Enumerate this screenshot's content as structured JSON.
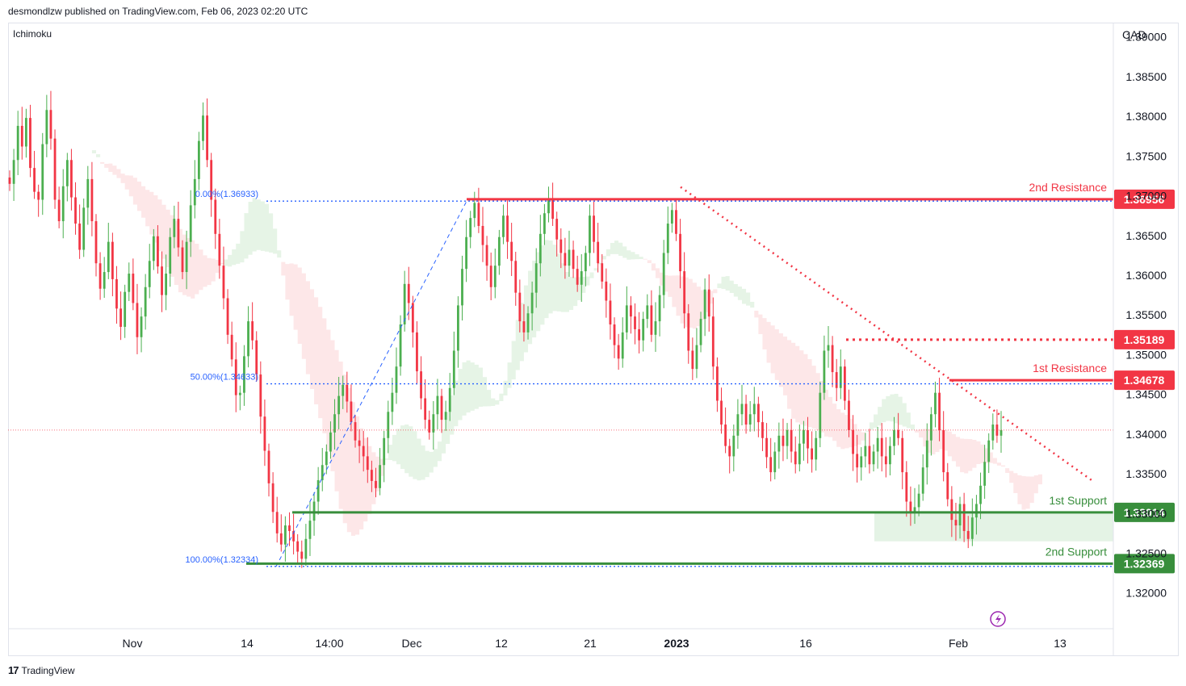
{
  "header": {
    "publisher": "desmondlzw published on TradingView.com, Feb 06, 2023 02:20 UTC"
  },
  "footer": {
    "brand": "TradingView"
  },
  "chart_data": {
    "type": "candlestick",
    "indicator": "Ichimoku",
    "currency": "CAD",
    "y_ticks": [
      "1.39000",
      "1.38500",
      "1.38000",
      "1.37500",
      "1.37000",
      "1.36500",
      "1.36000",
      "1.35500",
      "1.35000",
      "1.34500",
      "1.34000",
      "1.33500",
      "1.33000",
      "1.32500",
      "1.32000"
    ],
    "y_tick_values": [
      1.39,
      1.385,
      1.38,
      1.375,
      1.37,
      1.365,
      1.36,
      1.355,
      1.35,
      1.345,
      1.34,
      1.335,
      1.33,
      1.325,
      1.32
    ],
    "ylim": [
      1.3155,
      1.3918
    ],
    "x_ticks": [
      "Nov",
      "14",
      "14:00",
      "Dec",
      "12",
      "21",
      "2023",
      "16",
      "Feb",
      "13"
    ],
    "fib_levels": [
      {
        "label": "0.00%(1.36933)",
        "value": 1.36933
      },
      {
        "label": "50.00%(1.34633)",
        "value": 1.34633
      },
      {
        "label": "100.00%(1.32334)",
        "value": 1.32334
      }
    ],
    "levels": [
      {
        "name": "2nd Resistance",
        "value": 1.36956,
        "price_label": "1.36956",
        "color": "#f23645"
      },
      {
        "name": "",
        "value": 1.35189,
        "price_label": "1.35189",
        "color": "#f23645"
      },
      {
        "name": "1st Resistance",
        "value": 1.34678,
        "price_label": "1.34678",
        "color": "#f23645"
      },
      {
        "name": "1st Support",
        "value": 1.33014,
        "price_label": "1.33014",
        "color": "#388e3c"
      },
      {
        "name": "2nd Support",
        "value": 1.32369,
        "price_label": "1.32369",
        "color": "#388e3c"
      }
    ],
    "last_price": 1.3405,
    "closes": [
      1.3715,
      1.3745,
      1.3788,
      1.3762,
      1.3798,
      1.3735,
      1.3705,
      1.3695,
      1.3765,
      1.3808,
      1.3772,
      1.3695,
      1.3668,
      1.3712,
      1.3745,
      1.3698,
      1.3665,
      1.3632,
      1.3685,
      1.3721,
      1.3668,
      1.3615,
      1.3583,
      1.3604,
      1.3642,
      1.3595,
      1.3558,
      1.3535,
      1.3579,
      1.3602,
      1.3565,
      1.3522,
      1.3548,
      1.3585,
      1.3618,
      1.3649,
      1.3611,
      1.3575,
      1.3602,
      1.3648,
      1.3671,
      1.3635,
      1.3604,
      1.3642,
      1.3688,
      1.3721,
      1.3769,
      1.3801,
      1.3745,
      1.3695,
      1.3652,
      1.3612,
      1.3571,
      1.3525,
      1.3494,
      1.3449,
      1.3452,
      1.3498,
      1.3542,
      1.3518,
      1.3475,
      1.3422,
      1.3379,
      1.3338,
      1.3302,
      1.3275,
      1.3261,
      1.3285,
      1.3278,
      1.3265,
      1.3252,
      1.3243,
      1.3268,
      1.3291,
      1.3315,
      1.3342,
      1.3361,
      1.3378,
      1.3402,
      1.3425,
      1.3448,
      1.3462,
      1.3441,
      1.3415,
      1.3392,
      1.3385,
      1.3372,
      1.3355,
      1.3341,
      1.3332,
      1.3361,
      1.3395,
      1.3428,
      1.3452,
      1.3485,
      1.3538,
      1.3589,
      1.3565,
      1.3528,
      1.3479,
      1.3445,
      1.3418,
      1.3402,
      1.3425,
      1.3448,
      1.3418,
      1.3428,
      1.3458,
      1.3505,
      1.3562,
      1.3608,
      1.3648,
      1.3672,
      1.3691,
      1.3662,
      1.3638,
      1.3612,
      1.3585,
      1.3612,
      1.3648,
      1.3675,
      1.3642,
      1.3618,
      1.3578,
      1.3542,
      1.3528,
      1.3552,
      1.3578,
      1.3615,
      1.3652,
      1.3678,
      1.3695,
      1.3671,
      1.3645,
      1.3628,
      1.3612,
      1.3632,
      1.3608,
      1.3588,
      1.3605,
      1.3628,
      1.3675,
      1.3642,
      1.3615,
      1.3592,
      1.3568,
      1.3538,
      1.3512,
      1.3495,
      1.3528,
      1.3562,
      1.3548,
      1.3532,
      1.3518,
      1.3545,
      1.3562,
      1.3525,
      1.3542,
      1.3575,
      1.3628,
      1.3665,
      1.3682,
      1.3652,
      1.3605,
      1.3552,
      1.3505,
      1.3482,
      1.3512,
      1.3545,
      1.3582,
      1.3548,
      1.3485,
      1.3442,
      1.3412,
      1.3385,
      1.3372,
      1.3398,
      1.3425,
      1.3438,
      1.3412,
      1.3425,
      1.3438,
      1.3415,
      1.3395,
      1.3371,
      1.3352,
      1.3378,
      1.3398,
      1.3385,
      1.3405,
      1.3378,
      1.3362,
      1.3388,
      1.3405,
      1.3382,
      1.3368,
      1.3395,
      1.3452,
      1.3505,
      1.3512,
      1.3478,
      1.3458,
      1.3485,
      1.3442,
      1.3405,
      1.3375,
      1.3358,
      1.3372,
      1.3385,
      1.3362,
      1.3378,
      1.3395,
      1.3372,
      1.3362,
      1.3385,
      1.3405,
      1.3395,
      1.3352,
      1.3315,
      1.3301,
      1.3308,
      1.3325,
      1.3358,
      1.3392,
      1.3425,
      1.3452,
      1.3405,
      1.3352,
      1.3318,
      1.3292,
      1.3285,
      1.3312,
      1.3278,
      1.3268,
      1.3295,
      1.3312,
      1.3335,
      1.3365,
      1.3392,
      1.3412,
      1.3398,
      1.3405
    ]
  }
}
